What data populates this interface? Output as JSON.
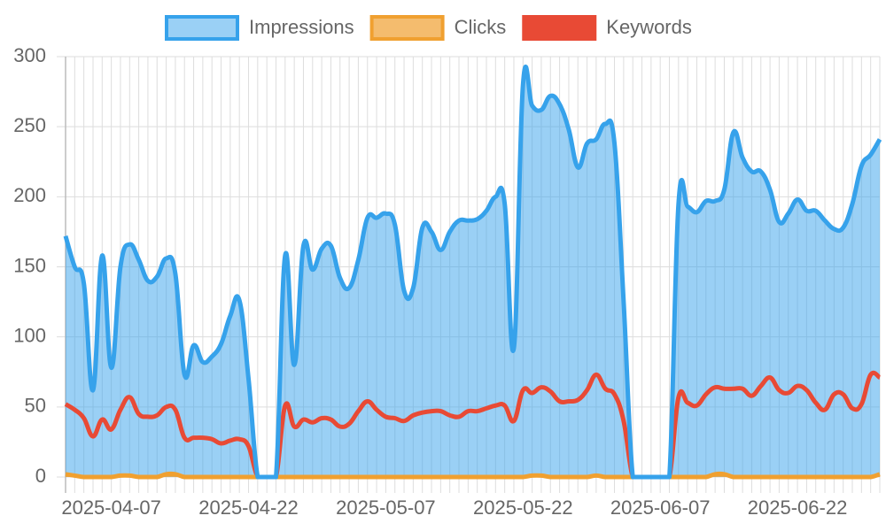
{
  "chart_data": {
    "type": "line",
    "categories": [
      null,
      null,
      null,
      null,
      null,
      "2025-04-07",
      null,
      null,
      null,
      null,
      null,
      null,
      null,
      null,
      null,
      null,
      null,
      null,
      null,
      null,
      "2025-04-22",
      null,
      null,
      null,
      null,
      null,
      null,
      null,
      null,
      null,
      null,
      null,
      null,
      null,
      null,
      "2025-05-07",
      null,
      null,
      null,
      null,
      null,
      null,
      null,
      null,
      null,
      null,
      null,
      null,
      null,
      null,
      "2025-05-22",
      null,
      null,
      null,
      null,
      null,
      null,
      null,
      null,
      null,
      null,
      null,
      null,
      null,
      null,
      "2025-06-07",
      null,
      null,
      null,
      null,
      null,
      null,
      null,
      null,
      null,
      null,
      null,
      null,
      null,
      null,
      "2025-06-22",
      null,
      null,
      null,
      null,
      null,
      null,
      null,
      null,
      null
    ],
    "series": [
      {
        "name": "Impressions",
        "color": "#36a2eb",
        "fill": "rgba(54,162,235,0.5)",
        "values": [
          172,
          150,
          138,
          62,
          158,
          78,
          150,
          166,
          155,
          140,
          143,
          156,
          145,
          73,
          94,
          82,
          86,
          95,
          115,
          126,
          70,
          0,
          0,
          0,
          158,
          80,
          165,
          148,
          163,
          165,
          142,
          135,
          155,
          185,
          185,
          188,
          180,
          133,
          135,
          178,
          175,
          162,
          175,
          183,
          183,
          184,
          190,
          200,
          195,
          92,
          280,
          265,
          262,
          272,
          266,
          248,
          221,
          238,
          241,
          252,
          238,
          125,
          0,
          0,
          0,
          0,
          0,
          195,
          193,
          189,
          197,
          197,
          205,
          246,
          228,
          218,
          218,
          205,
          182,
          188,
          198,
          190,
          190,
          183,
          177,
          178,
          195,
          222,
          230,
          241
        ]
      },
      {
        "name": "Clicks",
        "color": "#f0a030",
        "fill": "rgba(240,160,48,0.7)",
        "values": [
          2,
          1,
          0,
          0,
          0,
          0,
          1,
          1,
          0,
          0,
          0,
          2,
          2,
          0,
          0,
          0,
          0,
          0,
          0,
          0,
          0,
          0,
          0,
          0,
          0,
          0,
          0,
          0,
          0,
          0,
          0,
          0,
          0,
          0,
          0,
          0,
          0,
          0,
          0,
          0,
          0,
          0,
          0,
          0,
          0,
          0,
          0,
          0,
          0,
          0,
          0,
          1,
          1,
          0,
          0,
          0,
          0,
          0,
          1,
          0,
          0,
          0,
          0,
          0,
          0,
          0,
          0,
          0,
          0,
          0,
          0,
          2,
          2,
          0,
          0,
          0,
          0,
          0,
          0,
          0,
          0,
          0,
          0,
          0,
          0,
          0,
          0,
          0,
          0,
          2
        ]
      },
      {
        "name": "Keywords",
        "color": "#e84a35",
        "fill": "#e84a35",
        "values": [
          52,
          48,
          42,
          29,
          41,
          34,
          48,
          57,
          45,
          43,
          44,
          50,
          48,
          28,
          28,
          28,
          27,
          24,
          26,
          27,
          22,
          0,
          0,
          0,
          51,
          36,
          41,
          39,
          42,
          41,
          36,
          38,
          47,
          54,
          48,
          43,
          42,
          40,
          44,
          46,
          47,
          47,
          44,
          43,
          47,
          47,
          49,
          51,
          51,
          40,
          62,
          60,
          64,
          61,
          54,
          54,
          55,
          62,
          73,
          63,
          59,
          40,
          0,
          0,
          0,
          0,
          0,
          57,
          53,
          51,
          59,
          64,
          63,
          63,
          63,
          58,
          65,
          71,
          62,
          60,
          65,
          62,
          53,
          48,
          59,
          59,
          49,
          52,
          73,
          71
        ]
      }
    ],
    "ylim": [
      0,
      300
    ],
    "yticks": [
      0,
      50,
      100,
      150,
      200,
      250,
      300
    ],
    "grid": true,
    "legend": "top"
  }
}
